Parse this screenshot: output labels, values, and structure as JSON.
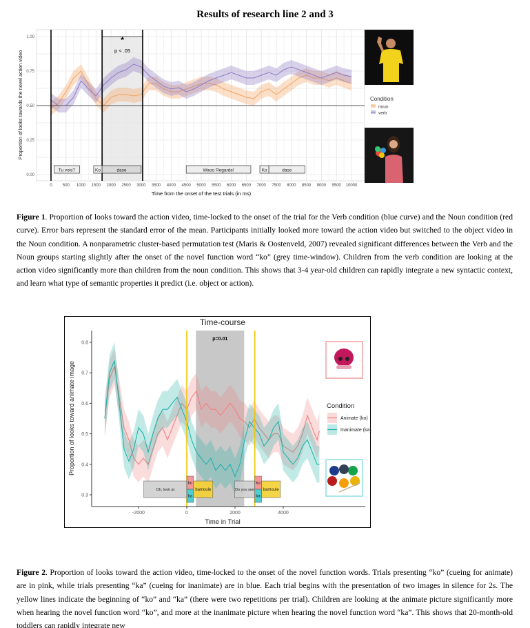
{
  "title": "Results of research line 2 and 3",
  "figure1": {
    "caption_label": "Figure 1",
    "caption_text": ". Proportion of looks toward the action video, time-locked to the onset of the trial for the Verb condition (blue curve) and the Noun condition (red curve). Error bars represent the standard error of the mean. Participants initially looked more toward the action video but switched to the object video in the Noun condition. A nonparametric cluster-based permutation test (Maris & Oostenveld, 2007) revealed significant differences between the Verb and the Noun groups starting slightly after the onset of the novel function word “ko” (grey time-window). Children from the verb condition are looking at the action video significantly more than children from the noun condition. This shows that 3-4 year-old children can rapidly integrate a new syntactic context, and learn what type of semantic properties it predict (i.e. object or action)."
  },
  "figure2": {
    "caption_label": "Figure 2",
    "caption_text": ". Proportion of looks toward the action video, time-locked to the onset of the novel function words. Trials presenting “ko” (cueing for animate) are in pink, while trials presenting “ka” (cueing for inanimate) are in blue. Each trial begins with the presentation of two images in silence for 2s. The yellow lines indicate the beginning of “ko” and “ka” (there were two repetitions per trial). Children are looking at the animate picture significantly more when hearing the novel function word “ko”, and more at the inanimate picture when hearing the novel function word “ka”. This shows that 20-month-old toddlers can rapidly integrate new"
  },
  "chart_data": [
    {
      "type": "line",
      "title": "",
      "xlabel": "Time from the onset of the test trials (in ms)",
      "ylabel": "Proportion of looks towards the novel action video",
      "xlim": [
        0,
        10000
      ],
      "ylim": [
        0,
        1
      ],
      "xticks": [
        "0",
        "500",
        "1000",
        "1500",
        "2000",
        "2500",
        "3000",
        "3500",
        "4000",
        "4500",
        "5000",
        "5500",
        "6000",
        "6500",
        "7000",
        "7500",
        "8000",
        "8500",
        "9000",
        "9500",
        "10000"
      ],
      "yticks": [
        "0.00",
        "0.25",
        "0.50",
        "0.75",
        "1.00"
      ],
      "grid": true,
      "legend": {
        "title": "Condition",
        "position": "right"
      },
      "significance": {
        "label_star": "*",
        "label": "p < .05",
        "from": 1700,
        "to": 3050
      },
      "events": [
        {
          "label": "Tu vois?",
          "from": 100,
          "to": 950
        },
        {
          "label": "Ko",
          "from": 1420,
          "to": 1700
        },
        {
          "label": "dase",
          "from": 1700,
          "to": 3000
        },
        {
          "label": "Waoo Regarde!",
          "from": 4500,
          "to": 6650
        },
        {
          "label": "Ko",
          "from": 6950,
          "to": 7250
        },
        {
          "label": "dase",
          "from": 7250,
          "to": 8450
        }
      ],
      "vlines": [
        0,
        1700,
        3050
      ],
      "hline": 0.5,
      "x": [
        0,
        250,
        500,
        750,
        1000,
        1250,
        1500,
        1750,
        2000,
        2250,
        2500,
        2750,
        3000,
        3250,
        3500,
        3750,
        4000,
        4250,
        4500,
        4750,
        5000,
        5250,
        5500,
        5750,
        6000,
        6250,
        6500,
        6750,
        7000,
        7250,
        7500,
        7750,
        8000,
        8250,
        8500,
        8750,
        9000,
        9250,
        9500,
        9750,
        10000
      ],
      "series": [
        {
          "name": "noun",
          "color": "#f4a460",
          "se": 0.05,
          "values": [
            0.48,
            0.52,
            0.6,
            0.7,
            0.75,
            0.65,
            0.55,
            0.5,
            0.56,
            0.58,
            0.58,
            0.57,
            0.58,
            0.66,
            0.66,
            0.62,
            0.6,
            0.6,
            0.62,
            0.64,
            0.66,
            0.66,
            0.65,
            0.62,
            0.6,
            0.58,
            0.56,
            0.55,
            0.6,
            0.62,
            0.58,
            0.62,
            0.66,
            0.7,
            0.72,
            0.7,
            0.7,
            0.68,
            0.7,
            0.68,
            0.66
          ]
        },
        {
          "name": "verb",
          "color": "#8e7cc3",
          "se": 0.05,
          "values": [
            0.54,
            0.5,
            0.5,
            0.56,
            0.68,
            0.62,
            0.57,
            0.65,
            0.7,
            0.74,
            0.76,
            0.8,
            0.78,
            0.72,
            0.68,
            0.64,
            0.62,
            0.63,
            0.6,
            0.62,
            0.65,
            0.68,
            0.7,
            0.72,
            0.74,
            0.72,
            0.7,
            0.7,
            0.72,
            0.74,
            0.72,
            0.76,
            0.78,
            0.76,
            0.74,
            0.72,
            0.7,
            0.72,
            0.74,
            0.72,
            0.71
          ]
        }
      ]
    },
    {
      "type": "line",
      "title": "Time-course",
      "xlabel": "Time in Trial",
      "ylabel": "Proportion of looks toward animate image",
      "xlim": [
        -3400,
        5500
      ],
      "ylim": [
        0.3,
        0.8
      ],
      "xticks": [
        "-2000",
        "0",
        "2000",
        "4000"
      ],
      "yticks": [
        "0.3",
        "0.4",
        "0.5",
        "0.6",
        "0.7",
        "0.8"
      ],
      "grid": false,
      "legend": {
        "title": "Condition",
        "position": "right"
      },
      "significance": {
        "label": "p=0.01",
        "from": 380,
        "to": 2380
      },
      "vlines": [
        0,
        2820
      ],
      "events": [
        {
          "label": "Oh, look at",
          "from": -1780,
          "to": 0,
          "kind": "grey"
        },
        {
          "label": "ko",
          "from": 0,
          "to": 280,
          "kind": "ko"
        },
        {
          "label": "ka",
          "from": 0,
          "to": 280,
          "kind": "ka"
        },
        {
          "label": "bamoule",
          "from": 280,
          "to": 1080,
          "kind": "yellow"
        },
        {
          "label": "Do you see",
          "from": 1980,
          "to": 2820,
          "kind": "grey"
        },
        {
          "label": "ko",
          "from": 2820,
          "to": 3100,
          "kind": "ko"
        },
        {
          "label": "ka",
          "from": 2820,
          "to": 3100,
          "kind": "ka"
        },
        {
          "label": "bamoule",
          "from": 3100,
          "to": 3880,
          "kind": "yellow"
        }
      ],
      "x": [
        -3400,
        -3200,
        -3000,
        -2800,
        -2600,
        -2400,
        -2200,
        -2000,
        -1800,
        -1600,
        -1400,
        -1200,
        -1000,
        -800,
        -600,
        -400,
        -200,
        0,
        200,
        400,
        600,
        800,
        1000,
        1200,
        1400,
        1600,
        1800,
        2000,
        2200,
        2400,
        2600,
        2800,
        3000,
        3200,
        3400,
        3600,
        3800,
        4000,
        4200,
        4400,
        4600,
        4800,
        5000,
        5200,
        5400,
        5500
      ],
      "series": [
        {
          "name": "Animate (ko)",
          "color": "#f08080",
          "se": 0.06,
          "values": [
            0.55,
            0.68,
            0.72,
            0.62,
            0.52,
            0.48,
            0.42,
            0.4,
            0.42,
            0.4,
            0.45,
            0.5,
            0.52,
            0.48,
            0.52,
            0.56,
            0.6,
            0.58,
            0.62,
            0.64,
            0.58,
            0.6,
            0.58,
            0.58,
            0.56,
            0.58,
            0.6,
            0.58,
            0.55,
            0.54,
            0.52,
            0.55,
            0.52,
            0.5,
            0.48,
            0.5,
            0.5,
            0.46,
            0.45,
            0.44,
            0.46,
            0.5,
            0.56,
            0.52,
            0.48,
            0.51
          ]
        },
        {
          "name": "Inanimate (ka)",
          "color": "#20b2aa",
          "se": 0.06,
          "values": [
            0.55,
            0.7,
            0.74,
            0.6,
            0.45,
            0.41,
            0.45,
            0.52,
            0.5,
            0.44,
            0.5,
            0.55,
            0.58,
            0.58,
            0.6,
            0.62,
            0.58,
            0.54,
            0.48,
            0.44,
            0.42,
            0.4,
            0.42,
            0.38,
            0.4,
            0.38,
            0.4,
            0.36,
            0.4,
            0.48,
            0.54,
            0.52,
            0.5,
            0.46,
            0.48,
            0.52,
            0.54,
            0.44,
            0.42,
            0.4,
            0.42,
            0.46,
            0.48,
            0.44,
            0.4,
            0.4
          ]
        }
      ]
    }
  ]
}
